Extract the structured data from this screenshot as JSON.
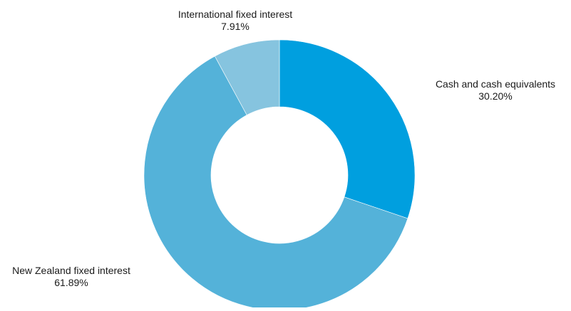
{
  "chart_data": {
    "type": "pie",
    "donut": true,
    "slices": [
      {
        "name": "Cash and cash equivalents",
        "value": 30.2,
        "label": "30.20%",
        "color": "#009fdf"
      },
      {
        "name": "New Zealand fixed interest",
        "value": 61.89,
        "label": "61.89%",
        "color": "#54b2d9"
      },
      {
        "name": "International fixed interest",
        "value": 7.91,
        "label": "7.91%",
        "color": "#86c4df"
      }
    ],
    "start_angle": "12 o'clock",
    "direction": "clockwise",
    "legend": "none"
  }
}
